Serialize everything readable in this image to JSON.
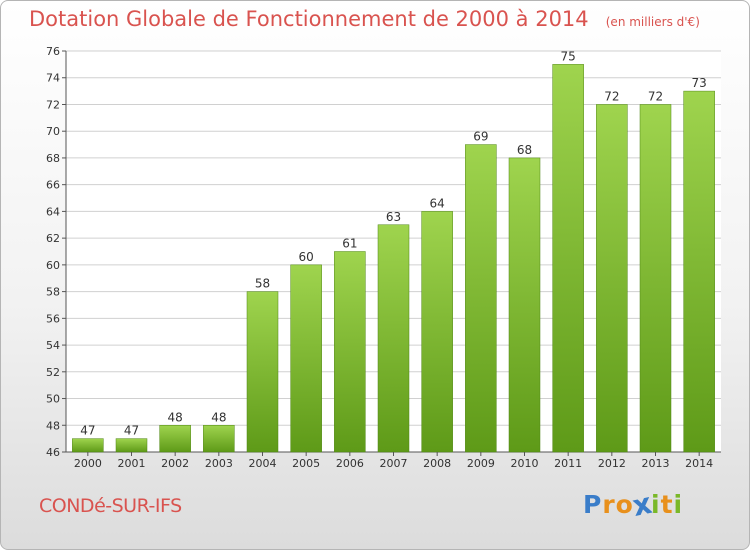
{
  "title": "Dotation Globale de Fonctionnement de 2000 à 2014",
  "subtitle": "(en milliers d'€)",
  "commune": "CONDé-SUR-IFS",
  "logo": {
    "text": "Proxiti",
    "letter_colors": [
      "#3a7dc9",
      "#e8901c",
      "#e8901c",
      "#3a7dc9",
      "#7ab828",
      "#e8901c",
      "#7ab828"
    ]
  },
  "colors": {
    "title": "#d9534f",
    "bar_light": "#9fd44e",
    "bar_dark": "#5e9a18",
    "grid": "#d0d0d0",
    "axis_text": "#333333"
  },
  "chart_data": {
    "type": "bar",
    "categories": [
      "2000",
      "2001",
      "2002",
      "2003",
      "2004",
      "2005",
      "2006",
      "2007",
      "2008",
      "2009",
      "2010",
      "2011",
      "2012",
      "2013",
      "2014"
    ],
    "values": [
      47,
      47,
      48,
      48,
      58,
      60,
      61,
      63,
      64,
      69,
      68,
      75,
      72,
      72,
      73
    ],
    "title": "Dotation Globale de Fonctionnement de 2000 à 2014",
    "subtitle": "(en milliers d'€)",
    "ylim": [
      46,
      76
    ],
    "yticks": [
      46,
      48,
      50,
      52,
      54,
      56,
      58,
      60,
      62,
      64,
      66,
      68,
      70,
      72,
      74,
      76
    ],
    "grid": true,
    "data_labels": true
  }
}
